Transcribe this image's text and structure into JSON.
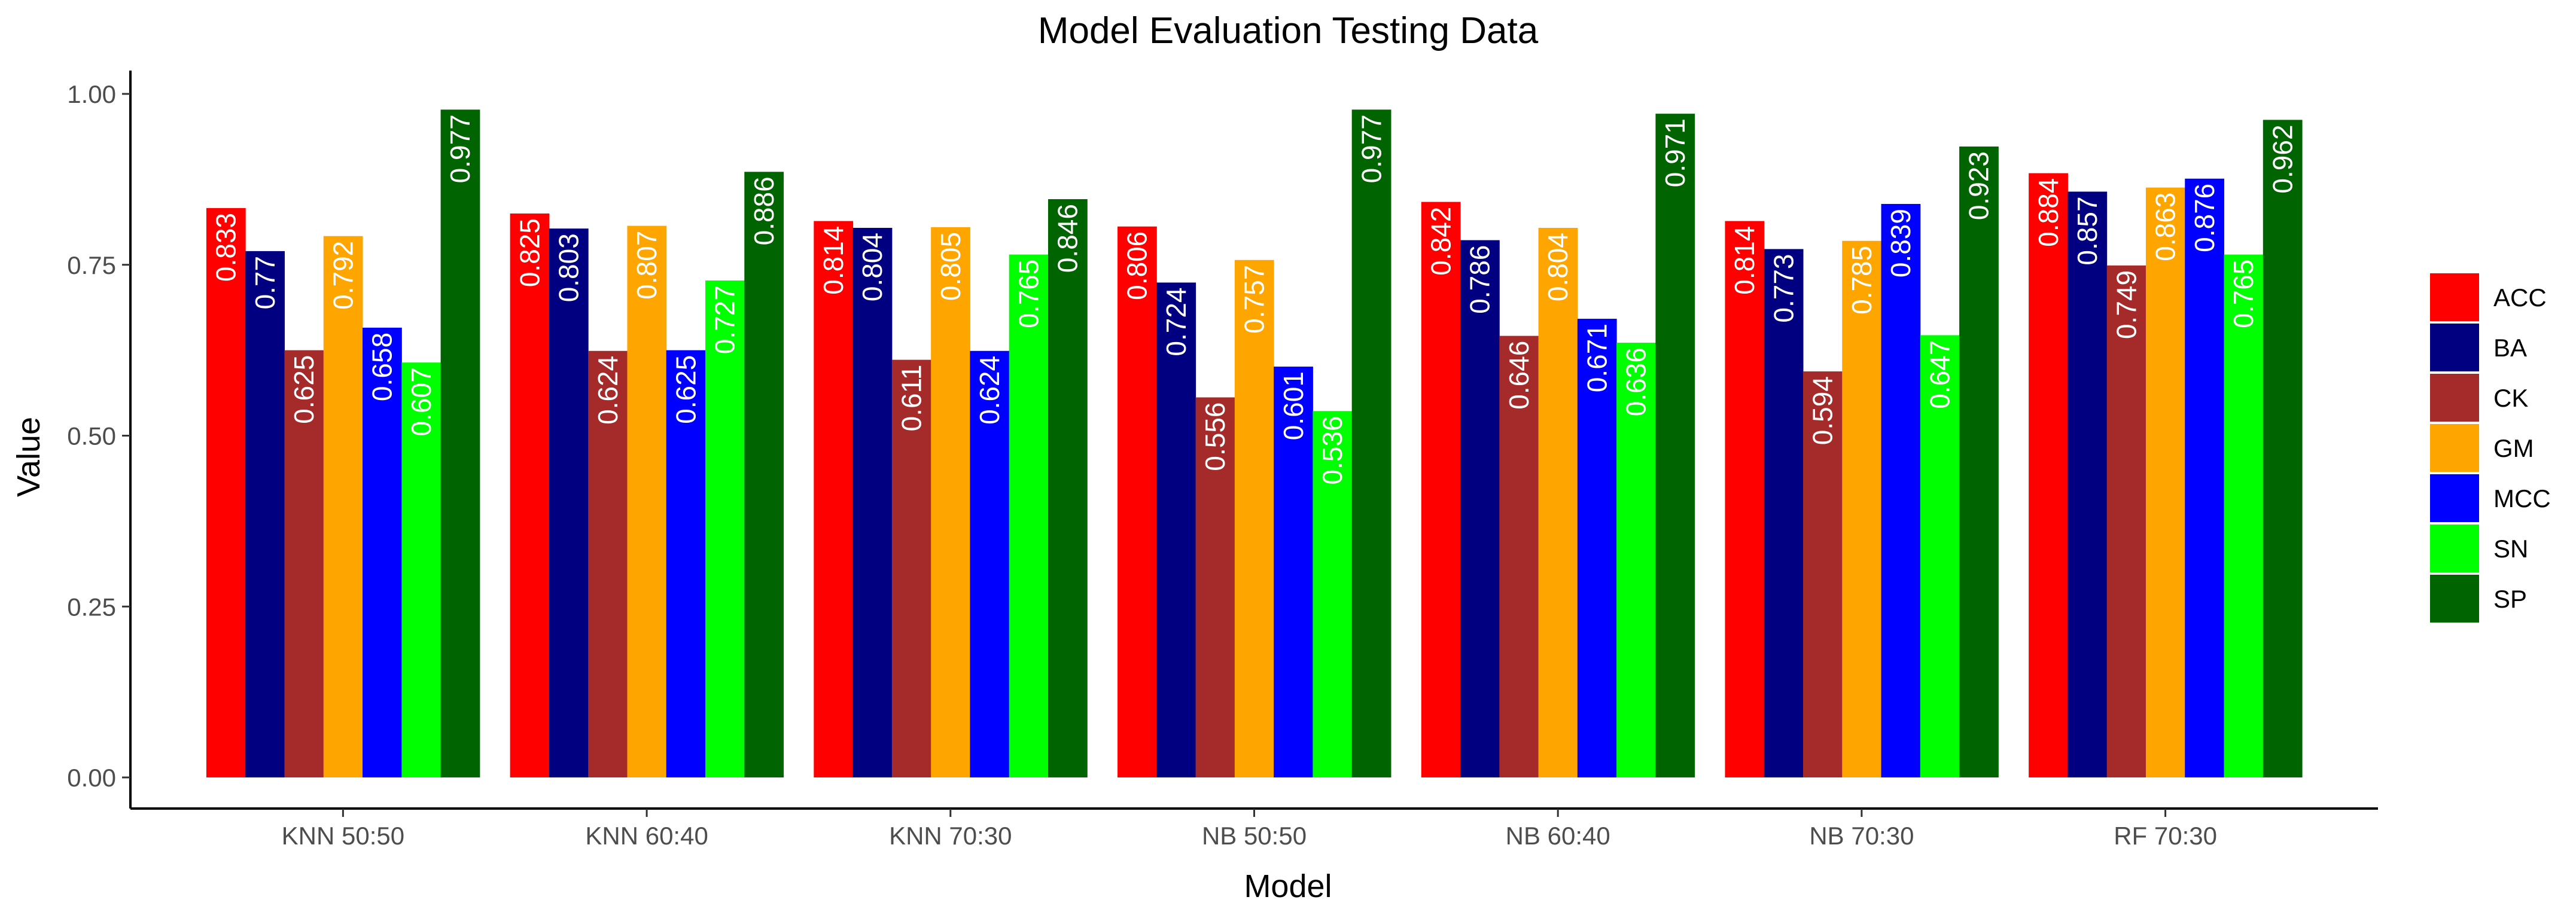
{
  "chart_data": {
    "type": "bar",
    "title": "Model Evaluation Testing Data",
    "xlabel": "Model",
    "ylabel": "Value",
    "ylim": [
      0,
      1.0
    ],
    "yticks": [
      "0.00",
      "0.25",
      "0.50",
      "0.75",
      "1.00"
    ],
    "ytick_values": [
      0,
      0.25,
      0.5,
      0.75,
      1.0
    ],
    "categories": [
      "KNN 50:50",
      "KNN 60:40",
      "KNN 70:30",
      "NB 50:50",
      "NB 60:40",
      "NB 70:30",
      "RF 70:30"
    ],
    "series": [
      {
        "name": "ACC",
        "color": "#ff0000",
        "values": [
          0.833,
          0.825,
          0.814,
          0.806,
          0.842,
          0.814,
          0.884
        ],
        "labels": [
          "0.833",
          "0.825",
          "0.814",
          "0.806",
          "0.842",
          "0.814",
          "0.884"
        ]
      },
      {
        "name": "BA",
        "color": "#000080",
        "values": [
          0.77,
          0.803,
          0.804,
          0.724,
          0.786,
          0.773,
          0.857
        ],
        "labels": [
          "0.77",
          "0.803",
          "0.804",
          "0.724",
          "0.786",
          "0.773",
          "0.857"
        ]
      },
      {
        "name": "CK",
        "color": "#a52a2a",
        "values": [
          0.625,
          0.624,
          0.611,
          0.556,
          0.646,
          0.594,
          0.749
        ],
        "labels": [
          "0.625",
          "0.624",
          "0.611",
          "0.556",
          "0.646",
          "0.594",
          "0.749"
        ]
      },
      {
        "name": "GM",
        "color": "#ffa500",
        "values": [
          0.792,
          0.807,
          0.805,
          0.757,
          0.804,
          0.785,
          0.863
        ],
        "labels": [
          "0.792",
          "0.807",
          "0.805",
          "0.757",
          "0.804",
          "0.785",
          "0.863"
        ]
      },
      {
        "name": "MCC",
        "color": "#0000ff",
        "values": [
          0.658,
          0.625,
          0.624,
          0.601,
          0.671,
          0.839,
          0.876
        ],
        "labels": [
          "0.658",
          "0.625",
          "0.624",
          "0.601",
          "0.671",
          "0.839",
          "0.876"
        ]
      },
      {
        "name": "SN",
        "color": "#00ff00",
        "values": [
          0.607,
          0.727,
          0.765,
          0.536,
          0.636,
          0.647,
          0.765
        ],
        "labels": [
          "0.607",
          "0.727",
          "0.765",
          "0.536",
          "0.636",
          "0.647",
          "0.765"
        ]
      },
      {
        "name": "SP",
        "color": "#006400",
        "values": [
          0.977,
          0.886,
          0.846,
          0.977,
          0.971,
          0.923,
          0.962
        ],
        "labels": [
          "0.977",
          "0.886",
          "0.846",
          "0.977",
          "0.971",
          "0.923",
          "0.962"
        ]
      }
    ],
    "grid": false,
    "legend_position": "right"
  }
}
